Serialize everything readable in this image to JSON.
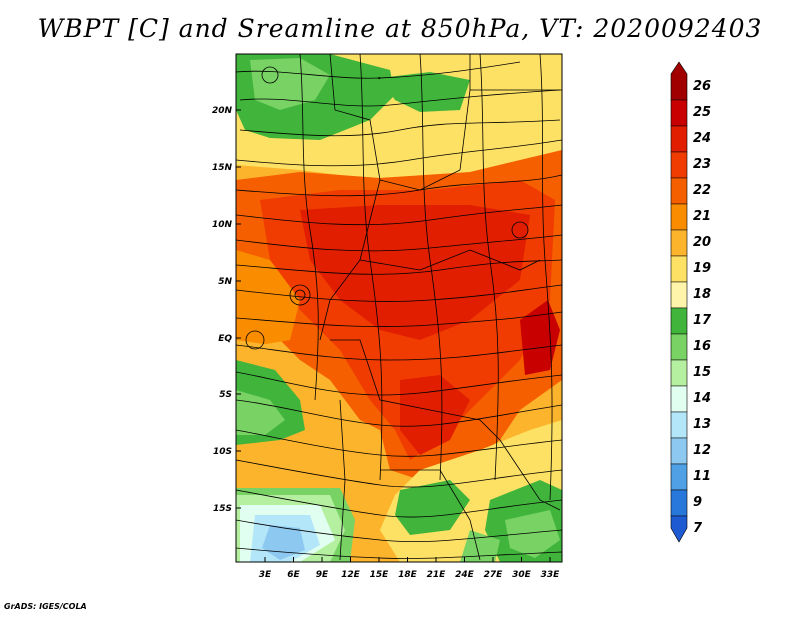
{
  "title": "WBPT [C] and Sreamline at 850hPa, VT: 2020092403",
  "credit": "GrADS: IGES/COLA",
  "map": {
    "lat_labels": [
      "20N",
      "15N",
      "10N",
      "5N",
      "EQ",
      "5S",
      "10S",
      "15S"
    ],
    "lon_labels": [
      "3E",
      "6E",
      "9E",
      "12E",
      "15E",
      "18E",
      "21E",
      "24E",
      "27E",
      "30E",
      "33E"
    ]
  },
  "colorbar": {
    "labels": [
      "26",
      "25",
      "24",
      "23",
      "22",
      "21",
      "20",
      "19",
      "18",
      "17",
      "16",
      "15",
      "14",
      "13",
      "12",
      "11",
      "9",
      "7"
    ],
    "colors": [
      "#a00000",
      "#c80000",
      "#e11e00",
      "#f03c00",
      "#f55f00",
      "#fa8c00",
      "#fdb42d",
      "#fde164",
      "#fff5aa",
      "#41b43c",
      "#78d264",
      "#b4f0a0",
      "#e1fff0",
      "#b4e6fa",
      "#8cc8f0",
      "#50a0e6",
      "#2878dc",
      "#1e5ad2"
    ]
  }
}
